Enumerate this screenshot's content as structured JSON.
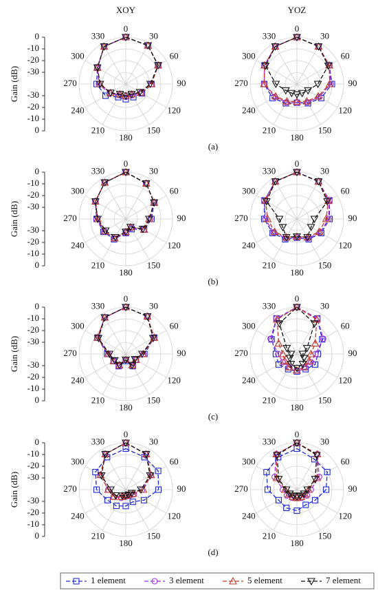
{
  "columns": [
    "XOY",
    "YOZ"
  ],
  "ylabel": "Gain (dB)",
  "panels": [
    "(a)",
    "(b)",
    "(c)",
    "(d)"
  ],
  "chart_data": [
    {
      "type": "polar",
      "theta": [
        0,
        30,
        60,
        90,
        120,
        150,
        180,
        210,
        240,
        270,
        300,
        330
      ],
      "rlim": [
        -40,
        0
      ],
      "rticks": [
        0,
        -10,
        -20,
        -30
      ],
      "series": [
        {
          "name": "1 element",
          "color": "#1f2bd6",
          "marker": "square",
          "values": [
            0,
            -2,
            -8,
            -18,
            -24,
            -27,
            -27,
            -27,
            -20,
            -15,
            -12,
            -3
          ]
        },
        {
          "name": "3 element",
          "color": "#a02ee0",
          "marker": "circle",
          "values": [
            0,
            -2,
            -8,
            -18,
            -25,
            -29,
            -29,
            -29,
            -24,
            -17,
            -12,
            -3
          ]
        },
        {
          "name": "5 element",
          "color": "#c0392b",
          "marker": "triangle-up",
          "values": [
            0,
            -2,
            -8,
            -18,
            -25,
            -30,
            -30,
            -30,
            -25,
            -18,
            -12,
            -3
          ]
        },
        {
          "name": "7 element",
          "color": "#111111",
          "marker": "triangle-down",
          "values": [
            0,
            -2,
            -8,
            -19,
            -26,
            -30,
            -30,
            -30,
            -25,
            -18,
            -12,
            -3
          ]
        }
      ]
    },
    {
      "type": "polar",
      "theta": [
        0,
        30,
        60,
        90,
        120,
        150,
        180,
        210,
        240,
        270,
        300,
        330
      ],
      "rlim": [
        -40,
        0
      ],
      "rticks": [
        0,
        -10,
        -20,
        -30
      ],
      "series": [
        {
          "name": "1 element",
          "color": "#1f2bd6",
          "marker": "square",
          "values": [
            0,
            -3,
            -8,
            -10,
            -16,
            -21,
            -24,
            -21,
            -16,
            -12,
            -8,
            -3
          ]
        },
        {
          "name": "3 element",
          "color": "#a02ee0",
          "marker": "circle",
          "values": [
            0,
            -3,
            -8,
            -11,
            -18,
            -22,
            -24,
            -22,
            -18,
            -12,
            -8,
            -3
          ]
        },
        {
          "name": "5 element",
          "color": "#c0392b",
          "marker": "triangle-up",
          "values": [
            0,
            -3,
            -8,
            -12,
            -19,
            -23,
            -25,
            -23,
            -19,
            -12,
            -8,
            -3
          ]
        },
        {
          "name": "7 element",
          "color": "#111111",
          "marker": "triangle-down",
          "values": [
            0,
            -3,
            -9,
            -22,
            -29,
            -31,
            -31,
            -31,
            -29,
            -22,
            -9,
            -3
          ]
        }
      ]
    },
    {
      "type": "polar",
      "theta": [
        0,
        30,
        60,
        90,
        120,
        150,
        180,
        210,
        240,
        270,
        300,
        330
      ],
      "rlim": [
        -40,
        0
      ],
      "rticks": [
        0,
        -10,
        -20,
        -30
      ],
      "series": [
        {
          "name": "1 element",
          "color": "#1f2bd6",
          "marker": "square",
          "values": [
            0,
            -5,
            -12,
            -18,
            -22,
            -30,
            -28,
            -20,
            -18,
            -15,
            -10,
            -4
          ]
        },
        {
          "name": "3 element",
          "color": "#a02ee0",
          "marker": "circle",
          "values": [
            0,
            -5,
            -12,
            -19,
            -22,
            -31,
            -28,
            -21,
            -19,
            -15,
            -10,
            -4
          ]
        },
        {
          "name": "5 element",
          "color": "#c0392b",
          "marker": "triangle-up",
          "values": [
            0,
            -5,
            -12,
            -20,
            -22,
            -32,
            -29,
            -21,
            -19,
            -16,
            -10,
            -4
          ]
        },
        {
          "name": "7 element",
          "color": "#111111",
          "marker": "triangle-down",
          "values": [
            0,
            -5,
            -12,
            -20,
            -23,
            -32,
            -29,
            -22,
            -20,
            -16,
            -10,
            -4
          ]
        }
      ]
    },
    {
      "type": "polar",
      "theta": [
        0,
        30,
        60,
        90,
        120,
        150,
        180,
        210,
        240,
        270,
        300,
        330
      ],
      "rlim": [
        -40,
        0
      ],
      "rticks": [
        0,
        -10,
        -20,
        -30
      ],
      "series": [
        {
          "name": "1 element",
          "color": "#1f2bd6",
          "marker": "square",
          "values": [
            0,
            -3,
            -8,
            -12,
            -16,
            -20,
            -24,
            -20,
            -16,
            -12,
            -8,
            -3
          ]
        },
        {
          "name": "3 element",
          "color": "#a02ee0",
          "marker": "circle",
          "values": [
            0,
            -3,
            -8,
            -13,
            -17,
            -21,
            -24,
            -21,
            -17,
            -13,
            -8,
            -3
          ]
        },
        {
          "name": "5 element",
          "color": "#c0392b",
          "marker": "triangle-up",
          "values": [
            0,
            -3,
            -9,
            -15,
            -18,
            -22,
            -25,
            -22,
            -18,
            -15,
            -9,
            -3
          ]
        },
        {
          "name": "7 element",
          "color": "#111111",
          "marker": "triangle-down",
          "values": [
            0,
            -3,
            -10,
            -25,
            -26,
            -22,
            -25,
            -22,
            -26,
            -25,
            -10,
            -3
          ]
        }
      ]
    },
    {
      "type": "polar",
      "theta": [
        0,
        30,
        60,
        90,
        120,
        150,
        180,
        210,
        240,
        270,
        300,
        330
      ],
      "rlim": [
        -40,
        0
      ],
      "rticks": [
        0,
        -10,
        -20,
        -30
      ],
      "series": [
        {
          "name": "1 element",
          "color": "#1f2bd6",
          "marker": "square",
          "values": [
            0,
            -3,
            -12,
            -24,
            -30,
            -28,
            -34,
            -28,
            -28,
            -24,
            -12,
            -4
          ]
        },
        {
          "name": "3 element",
          "color": "#a02ee0",
          "marker": "circle",
          "values": [
            0,
            -3,
            -12,
            -25,
            -30,
            -28,
            -35,
            -28,
            -28,
            -25,
            -12,
            -4
          ]
        },
        {
          "name": "5 element",
          "color": "#c0392b",
          "marker": "triangle-up",
          "values": [
            0,
            -3,
            -12,
            -25,
            -30,
            -29,
            -35,
            -29,
            -28,
            -25,
            -12,
            -4
          ]
        },
        {
          "name": "7 element",
          "color": "#111111",
          "marker": "triangle-down",
          "values": [
            0,
            -3,
            -13,
            -26,
            -31,
            -29,
            -35,
            -29,
            -29,
            -26,
            -13,
            -4
          ]
        }
      ]
    },
    {
      "type": "polar",
      "theta": [
        0,
        30,
        60,
        90,
        120,
        150,
        180,
        210,
        240,
        270,
        300,
        330
      ],
      "rlim": [
        -40,
        0
      ],
      "rticks": [
        0,
        -10,
        -20,
        -30
      ],
      "series": [
        {
          "name": "1 element",
          "color": "#1f2bd6",
          "marker": "square",
          "values": [
            0,
            -5,
            -15,
            -22,
            -22,
            -25,
            -25,
            -25,
            -22,
            -22,
            -15,
            -5
          ]
        },
        {
          "name": "3 element",
          "color": "#a02ee0",
          "marker": "circle",
          "values": [
            0,
            -5,
            -14,
            -24,
            -26,
            -27,
            -26,
            -27,
            -26,
            -24,
            -14,
            -5
          ]
        },
        {
          "name": "5 element",
          "color": "#c0392b",
          "marker": "triangle-up",
          "values": [
            0,
            -6,
            -22,
            -28,
            -28,
            -27,
            -26,
            -27,
            -28,
            -28,
            -22,
            -6
          ]
        },
        {
          "name": "7 element",
          "color": "#111111",
          "marker": "triangle-down",
          "values": [
            0,
            -10,
            -30,
            -35,
            -33,
            -30,
            -28,
            -30,
            -33,
            -35,
            -30,
            -10
          ]
        }
      ]
    },
    {
      "type": "polar",
      "theta": [
        0,
        30,
        60,
        90,
        120,
        150,
        180,
        210,
        240,
        270,
        300,
        330
      ],
      "rlim": [
        -40,
        0
      ],
      "rticks": [
        0,
        -10,
        -20,
        -30
      ],
      "series": [
        {
          "name": "1 element",
          "color": "#1f2bd6",
          "marker": "square",
          "values": [
            -5,
            -8,
            -8,
            -12,
            -22,
            -28,
            -26,
            -24,
            -22,
            -15,
            -10,
            -8
          ]
        },
        {
          "name": "3 element",
          "color": "#a02ee0",
          "marker": "circle",
          "values": [
            0,
            -5,
            -15,
            -26,
            -32,
            -34,
            -34,
            -32,
            -28,
            -25,
            -15,
            -5
          ]
        },
        {
          "name": "5 element",
          "color": "#c0392b",
          "marker": "triangle-up",
          "values": [
            0,
            -5,
            -15,
            -25,
            -33,
            -35,
            -35,
            -33,
            -28,
            -25,
            -15,
            -5
          ]
        },
        {
          "name": "7 element",
          "color": "#111111",
          "marker": "triangle-down",
          "values": [
            0,
            -5,
            -16,
            -27,
            -34,
            -35,
            -35,
            -34,
            -30,
            -27,
            -16,
            -5
          ]
        }
      ]
    },
    {
      "type": "polar",
      "theta": [
        0,
        30,
        60,
        90,
        120,
        150,
        180,
        210,
        240,
        270,
        300,
        330
      ],
      "rlim": [
        -40,
        0
      ],
      "rticks": [
        0,
        -10,
        -20,
        -30
      ],
      "series": [
        {
          "name": "1 element",
          "color": "#1f2bd6",
          "marker": "square",
          "values": [
            -5,
            -10,
            -10,
            -15,
            -22,
            -25,
            -22,
            -22,
            -22,
            -15,
            -10,
            -8
          ]
        },
        {
          "name": "3 element",
          "color": "#a02ee0",
          "marker": "circle",
          "values": [
            0,
            -5,
            -18,
            -28,
            -30,
            -32,
            -33,
            -32,
            -30,
            -28,
            -18,
            -5
          ]
        },
        {
          "name": "5 element",
          "color": "#c0392b",
          "marker": "triangle-up",
          "values": [
            0,
            -5,
            -20,
            -30,
            -32,
            -33,
            -33,
            -33,
            -32,
            -30,
            -20,
            -5
          ]
        },
        {
          "name": "7 element",
          "color": "#111111",
          "marker": "triangle-down",
          "values": [
            0,
            -6,
            -22,
            -31,
            -33,
            -34,
            -34,
            -34,
            -33,
            -31,
            -22,
            -6
          ]
        }
      ]
    }
  ]
}
